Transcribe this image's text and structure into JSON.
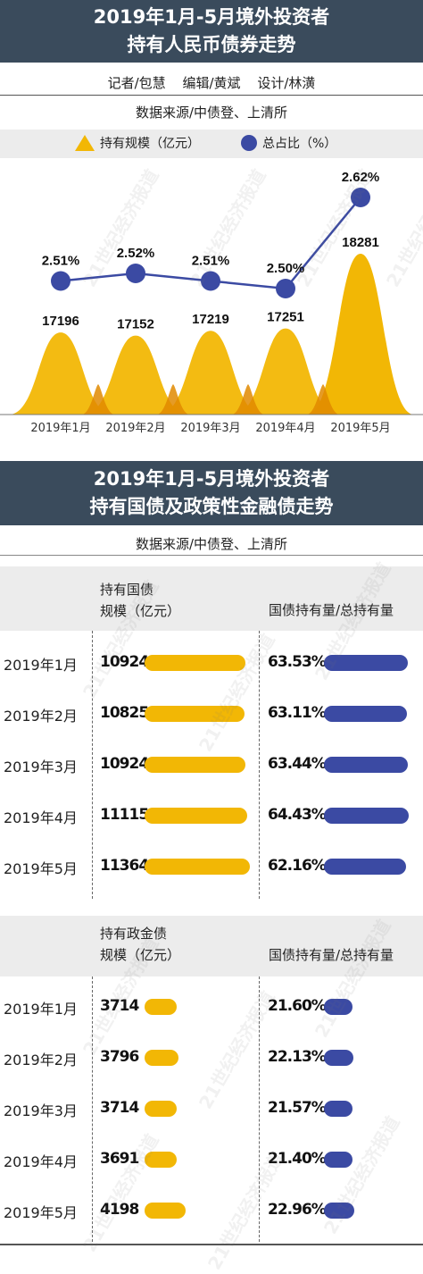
{
  "title1": {
    "line1": "2019年1月-5月境外投资者",
    "line2": "持有人民币债券走势"
  },
  "credits": {
    "reporter": "记者/包慧",
    "editor": "编辑/黄斌",
    "design": "设计/林潢"
  },
  "source": "数据来源/中债登、上清所",
  "legend": {
    "area": "持有规模（亿元）",
    "line": "总占比（%）"
  },
  "colors": {
    "yellow": "#f2b705",
    "yellow_dark": "#e08a00",
    "blue": "#3b4aa3",
    "banner": "#3a4b5c"
  },
  "watermark": "21世纪经济报道",
  "chart_data": [
    {
      "type": "area",
      "categories": [
        "2019年1月",
        "2019年2月",
        "2019年3月",
        "2019年4月",
        "2019年5月"
      ],
      "series": [
        {
          "name": "持有规模（亿元）",
          "values": [
            17196,
            17152,
            17219,
            17251,
            18281
          ],
          "labels": [
            "17196",
            "17152",
            "17219",
            "17251",
            "18281"
          ]
        },
        {
          "name": "总占比（%）",
          "values": [
            2.51,
            2.52,
            2.51,
            2.5,
            2.62
          ],
          "labels": [
            "2.51%",
            "2.52%",
            "2.51%",
            "2.50%",
            "2.62%"
          ]
        }
      ],
      "legend": "top",
      "grid": false
    },
    {
      "type": "bar",
      "categories": [
        "2019年1月",
        "2019年2月",
        "2019年3月",
        "2019年4月",
        "2019年5月"
      ],
      "series": [
        {
          "name": "持有国债规模（亿元）",
          "values": [
            10924,
            10825,
            10924,
            11115,
            11364
          ]
        },
        {
          "name": "国债持有量/总持有量",
          "values": [
            63.53,
            63.11,
            63.44,
            64.43,
            62.16
          ]
        }
      ]
    },
    {
      "type": "bar",
      "categories": [
        "2019年1月",
        "2019年2月",
        "2019年3月",
        "2019年4月",
        "2019年5月"
      ],
      "series": [
        {
          "name": "持有政金债规模（亿元）",
          "values": [
            3714,
            3796,
            3714,
            3691,
            4198
          ]
        },
        {
          "name": "国债持有量/总持有量",
          "values": [
            21.6,
            22.13,
            21.57,
            21.4,
            22.96
          ]
        }
      ]
    }
  ],
  "title2": {
    "line1": "2019年1月-5月境外投资者",
    "line2": "持有国债及政策性金融债走势"
  },
  "panel1": {
    "head_left_1": "持有国债",
    "head_left_2": "规模（亿元）",
    "head_right": "国债持有量/总持有量",
    "rows": [
      {
        "month": "2019年1月",
        "value": "10924",
        "pct": "63.53%"
      },
      {
        "month": "2019年2月",
        "value": "10825",
        "pct": "63.11%"
      },
      {
        "month": "2019年3月",
        "value": "10924",
        "pct": "63.44%"
      },
      {
        "month": "2019年4月",
        "value": "11115",
        "pct": "64.43%"
      },
      {
        "month": "2019年5月",
        "value": "11364",
        "pct": "62.16%"
      }
    ]
  },
  "panel2": {
    "head_left_1": "持有政金债",
    "head_left_2": "规模（亿元）",
    "head_right": "国债持有量/总持有量",
    "rows": [
      {
        "month": "2019年1月",
        "value": "3714",
        "pct": "21.60%"
      },
      {
        "month": "2019年2月",
        "value": "3796",
        "pct": "22.13%"
      },
      {
        "month": "2019年3月",
        "value": "3714",
        "pct": "21.57%"
      },
      {
        "month": "2019年4月",
        "value": "3691",
        "pct": "21.40%"
      },
      {
        "month": "2019年5月",
        "value": "4198",
        "pct": "22.96%"
      }
    ]
  }
}
